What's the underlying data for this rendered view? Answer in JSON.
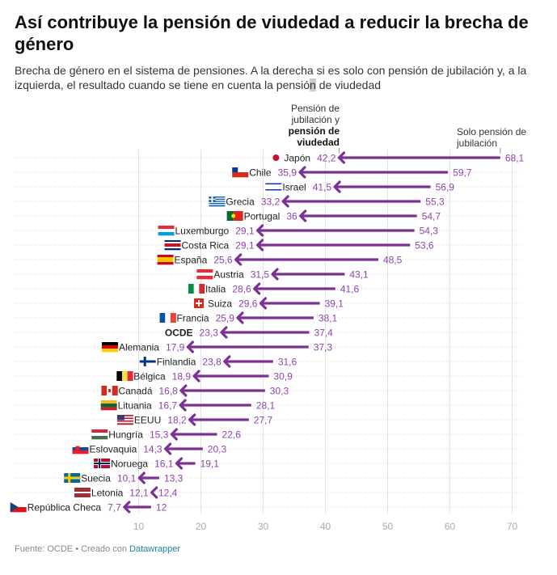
{
  "header": {
    "title": "Así contribuye la pensión de viudedad a reducir la brecha de género",
    "subtitle_pre": "Brecha de género en el sistema de pensiones. A la derecha si es solo con pensión de jubilación y, a la izquierda, el resultado cuando se tiene en cuenta la pensió",
    "subtitle_hl": "n",
    "subtitle_post": " de viudedad"
  },
  "annotations": {
    "left_line1": "Pensión de",
    "left_line2": "jubilación y",
    "left_bold1": "pensión de",
    "left_bold2": "viudedad",
    "right_line1": "Solo pensión de",
    "right_line2": "jubilación"
  },
  "footer": {
    "source": "Fuente: OCDE • Creado con ",
    "link": "Datawrapper"
  },
  "colors": {
    "arrow": "#7b3294",
    "label": "#8e44ad",
    "grid": "#e3e3e3",
    "tick": "#aaaaaa"
  },
  "chart_data": {
    "type": "arrow-dot",
    "title": "Así contribuye la pensión de viudedad a reducir la brecha de género",
    "xlabel": "",
    "ylabel": "",
    "xlim": [
      0,
      72
    ],
    "xticks": [
      10,
      20,
      30,
      40,
      50,
      60,
      70
    ],
    "grid": true,
    "series": [
      {
        "name": "Solo pensión de jubilación",
        "role": "start"
      },
      {
        "name": "Pensión de jubilación y pensión de viudedad",
        "role": "end"
      }
    ],
    "rows": [
      {
        "country": "Japón",
        "flag": "jp",
        "with_widow": 42.2,
        "only_retirement": 68.1,
        "with_label": "42,2",
        "only_label": "68,1"
      },
      {
        "country": "Chile",
        "flag": "cl",
        "with_widow": 35.9,
        "only_retirement": 59.7,
        "with_label": "35,9",
        "only_label": "59,7"
      },
      {
        "country": "Israel",
        "flag": "il",
        "with_widow": 41.5,
        "only_retirement": 56.9,
        "with_label": "41,5",
        "only_label": "56,9"
      },
      {
        "country": "Grecia",
        "flag": "gr",
        "with_widow": 33.2,
        "only_retirement": 55.3,
        "with_label": "33,2",
        "only_label": "55,3"
      },
      {
        "country": "Portugal",
        "flag": "pt",
        "with_widow": 36,
        "only_retirement": 54.7,
        "with_label": "36",
        "only_label": "54,7"
      },
      {
        "country": "Luxemburgo",
        "flag": "lu",
        "with_widow": 29.1,
        "only_retirement": 54.3,
        "with_label": "29,1",
        "only_label": "54,3"
      },
      {
        "country": "Costa Rica",
        "flag": "cr",
        "with_widow": 29.1,
        "only_retirement": 53.6,
        "with_label": "29,1",
        "only_label": "53,6"
      },
      {
        "country": "España",
        "flag": "es",
        "with_widow": 25.6,
        "only_retirement": 48.5,
        "with_label": "25,6",
        "only_label": "48,5"
      },
      {
        "country": "Austria",
        "flag": "at",
        "with_widow": 31.5,
        "only_retirement": 43.1,
        "with_label": "31,5",
        "only_label": "43,1"
      },
      {
        "country": "Italia",
        "flag": "it",
        "with_widow": 28.6,
        "only_retirement": 41.6,
        "with_label": "28,6",
        "only_label": "41,6"
      },
      {
        "country": "Suiza",
        "flag": "ch",
        "with_widow": 29.6,
        "only_retirement": 39.1,
        "with_label": "29,6",
        "only_label": "39,1"
      },
      {
        "country": "Francia",
        "flag": "fr",
        "with_widow": 25.9,
        "only_retirement": 38.1,
        "with_label": "25,9",
        "only_label": "38,1"
      },
      {
        "country": "OCDE",
        "flag": "",
        "bold": true,
        "with_widow": 23.3,
        "only_retirement": 37.4,
        "with_label": "23,3",
        "only_label": "37,4"
      },
      {
        "country": "Alemania",
        "flag": "de",
        "with_widow": 17.9,
        "only_retirement": 37.3,
        "with_label": "17,9",
        "only_label": "37,3"
      },
      {
        "country": "Finlandia",
        "flag": "fi",
        "with_widow": 23.8,
        "only_retirement": 31.6,
        "with_label": "23,8",
        "only_label": "31,6"
      },
      {
        "country": "Bélgica",
        "flag": "be",
        "with_widow": 18.9,
        "only_retirement": 30.9,
        "with_label": "18,9",
        "only_label": "30,9"
      },
      {
        "country": "Canadá",
        "flag": "ca",
        "with_widow": 16.8,
        "only_retirement": 30.3,
        "with_label": "16,8",
        "only_label": "30,3"
      },
      {
        "country": "Lituania",
        "flag": "lt",
        "with_widow": 16.7,
        "only_retirement": 28.1,
        "with_label": "16,7",
        "only_label": "28,1"
      },
      {
        "country": "EEUU",
        "flag": "us",
        "with_widow": 18.2,
        "only_retirement": 27.7,
        "with_label": "18,2",
        "only_label": "27,7"
      },
      {
        "country": "Hungría",
        "flag": "hu",
        "with_widow": 15.3,
        "only_retirement": 22.6,
        "with_label": "15,3",
        "only_label": "22,6"
      },
      {
        "country": "Eslovaquia",
        "flag": "sk",
        "with_widow": 14.3,
        "only_retirement": 20.3,
        "with_label": "14,3",
        "only_label": "20,3"
      },
      {
        "country": "Noruega",
        "flag": "no",
        "with_widow": 16.1,
        "only_retirement": 19.1,
        "with_label": "16,1",
        "only_label": "19,1"
      },
      {
        "country": "Suecia",
        "flag": "se",
        "with_widow": 10.1,
        "only_retirement": 13.3,
        "with_label": "10,1",
        "only_label": "13,3"
      },
      {
        "country": "Letonia",
        "flag": "lv",
        "with_widow": 12.1,
        "only_retirement": 12.4,
        "with_label": "12,1",
        "only_label": "12,4"
      },
      {
        "country": "República Checa",
        "flag": "cz",
        "with_widow": 7.7,
        "only_retirement": 12,
        "with_label": "7,7",
        "only_label": "12"
      }
    ]
  }
}
